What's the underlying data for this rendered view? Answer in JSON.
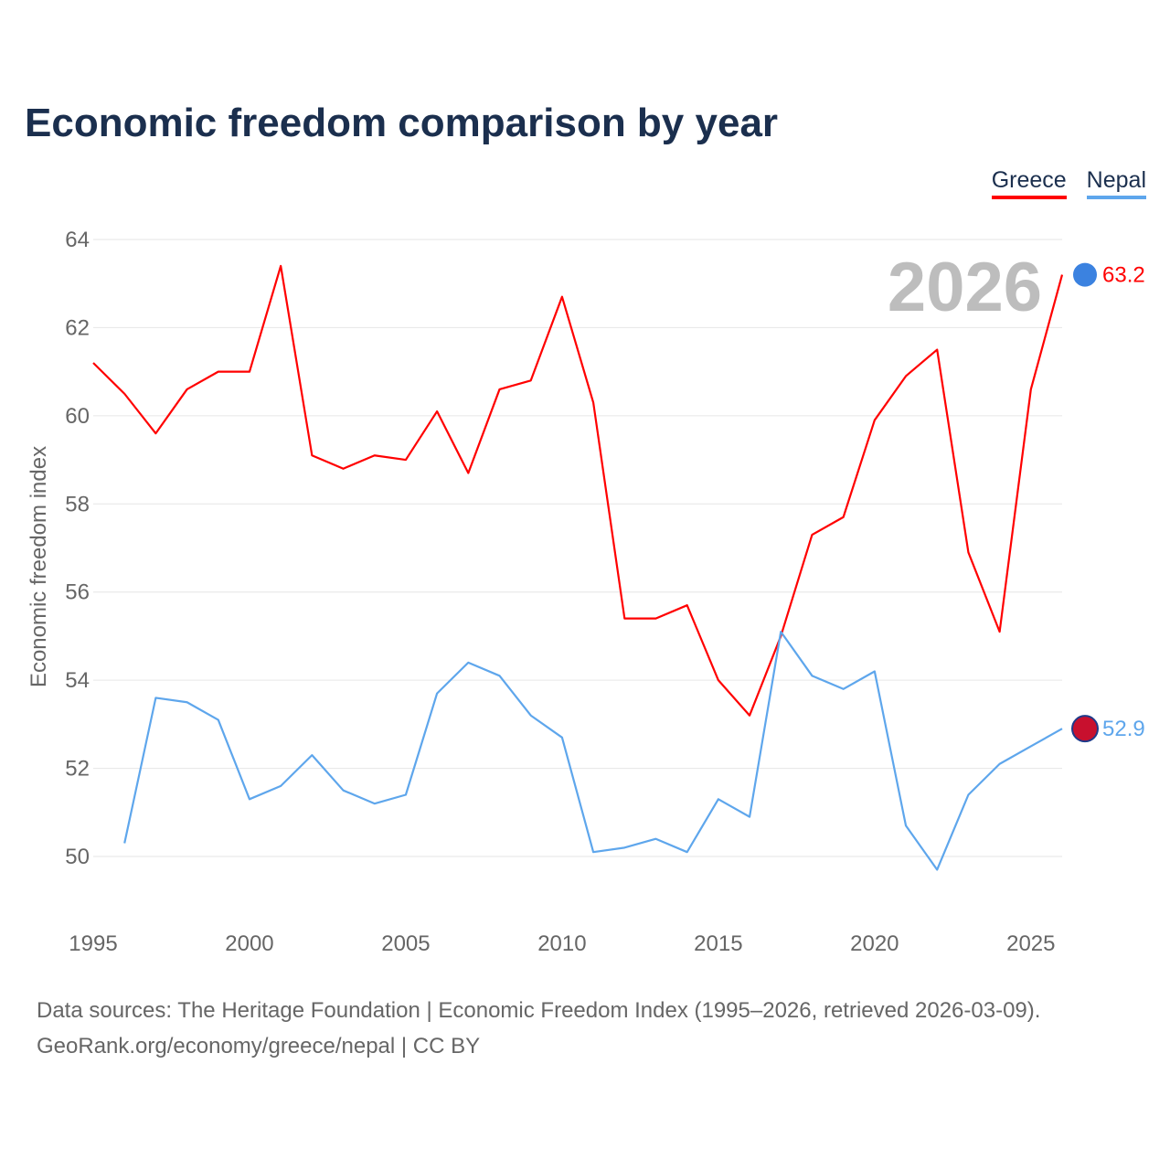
{
  "title": "Economic freedom comparison by year",
  "legend": [
    {
      "label": "Greece",
      "color": "#ff0000"
    },
    {
      "label": "Nepal",
      "color": "#5ea6ec"
    }
  ],
  "year_label": "2026",
  "source_line1": "Data sources: The Heritage Foundation | Economic Freedom Index (1995–2026, retrieved 2026-03-09).",
  "source_line2": "GeoRank.org/economy/greece/nepal | CC BY",
  "chart_data": {
    "type": "line",
    "title": "Economic freedom comparison by year",
    "xlabel": "",
    "ylabel": "Economic freedom index",
    "xlim": [
      1995,
      2026
    ],
    "ylim": [
      48.5,
      64.5
    ],
    "xticks": [
      1995,
      2000,
      2005,
      2010,
      2015,
      2020,
      2025
    ],
    "yticks": [
      50,
      52,
      54,
      56,
      58,
      60,
      62,
      64
    ],
    "grid": true,
    "legend_position": "top-right",
    "series": [
      {
        "name": "Greece",
        "color": "#ff0000",
        "end_label": "63.2",
        "x": [
          1995,
          1996,
          1997,
          1998,
          1999,
          2000,
          2001,
          2002,
          2003,
          2004,
          2005,
          2006,
          2007,
          2008,
          2009,
          2010,
          2011,
          2012,
          2013,
          2014,
          2015,
          2016,
          2017,
          2018,
          2019,
          2020,
          2021,
          2022,
          2023,
          2024,
          2025,
          2026
        ],
        "values": [
          61.2,
          60.5,
          59.6,
          60.6,
          61.0,
          61.0,
          63.4,
          59.1,
          58.8,
          59.1,
          59.0,
          60.1,
          58.7,
          60.6,
          60.8,
          62.7,
          60.3,
          55.4,
          55.4,
          55.7,
          54.0,
          53.2,
          55.0,
          57.3,
          57.7,
          59.9,
          60.9,
          61.5,
          56.9,
          55.1,
          60.6,
          63.2
        ]
      },
      {
        "name": "Nepal",
        "color": "#5ea6ec",
        "end_label": "52.9",
        "x": [
          1996,
          1997,
          1998,
          1999,
          2000,
          2001,
          2002,
          2003,
          2004,
          2005,
          2006,
          2007,
          2008,
          2009,
          2010,
          2011,
          2012,
          2013,
          2014,
          2015,
          2016,
          2017,
          2018,
          2019,
          2020,
          2021,
          2022,
          2023,
          2024,
          2025,
          2026
        ],
        "values": [
          50.3,
          53.6,
          53.5,
          53.1,
          51.3,
          51.6,
          52.3,
          51.5,
          51.2,
          51.4,
          53.7,
          54.4,
          54.1,
          53.2,
          52.7,
          50.1,
          50.2,
          50.4,
          50.1,
          51.3,
          50.9,
          55.1,
          54.1,
          53.8,
          54.2,
          50.7,
          49.7,
          51.4,
          52.1,
          52.5,
          52.9
        ]
      }
    ]
  }
}
